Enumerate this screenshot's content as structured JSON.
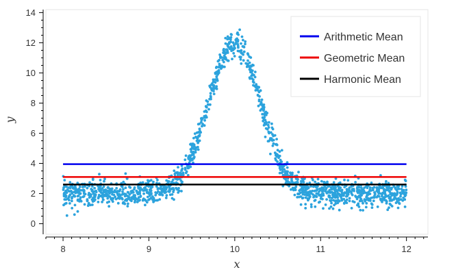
{
  "chart_data": {
    "type": "scatter",
    "title": "",
    "xlabel": "x",
    "ylabel": "y",
    "xlim": [
      7.8,
      12.25
    ],
    "ylim": [
      -0.7,
      14.2
    ],
    "xticks": [
      "8",
      "9",
      "10",
      "11",
      "12"
    ],
    "yticks": [
      "0",
      "2",
      "4",
      "6",
      "8",
      "10",
      "12",
      "14"
    ],
    "grid": false,
    "legend_position": "top-right",
    "scatter": {
      "color": "#2ca3dd",
      "n_points": 1600,
      "x_range": [
        8,
        12
      ],
      "baseline": 2.0,
      "peak_x": 10.0,
      "peak_height": 10.0,
      "peak_width": 0.3,
      "noise": 0.42
    },
    "series": [
      {
        "name": "Arithmetic Mean",
        "y": 3.95,
        "color": "#0000ee"
      },
      {
        "name": "Geometric Mean",
        "y": 3.1,
        "color": "#ee0000"
      },
      {
        "name": "Harmonic Mean",
        "y": 2.6,
        "color": "#000000"
      }
    ]
  }
}
